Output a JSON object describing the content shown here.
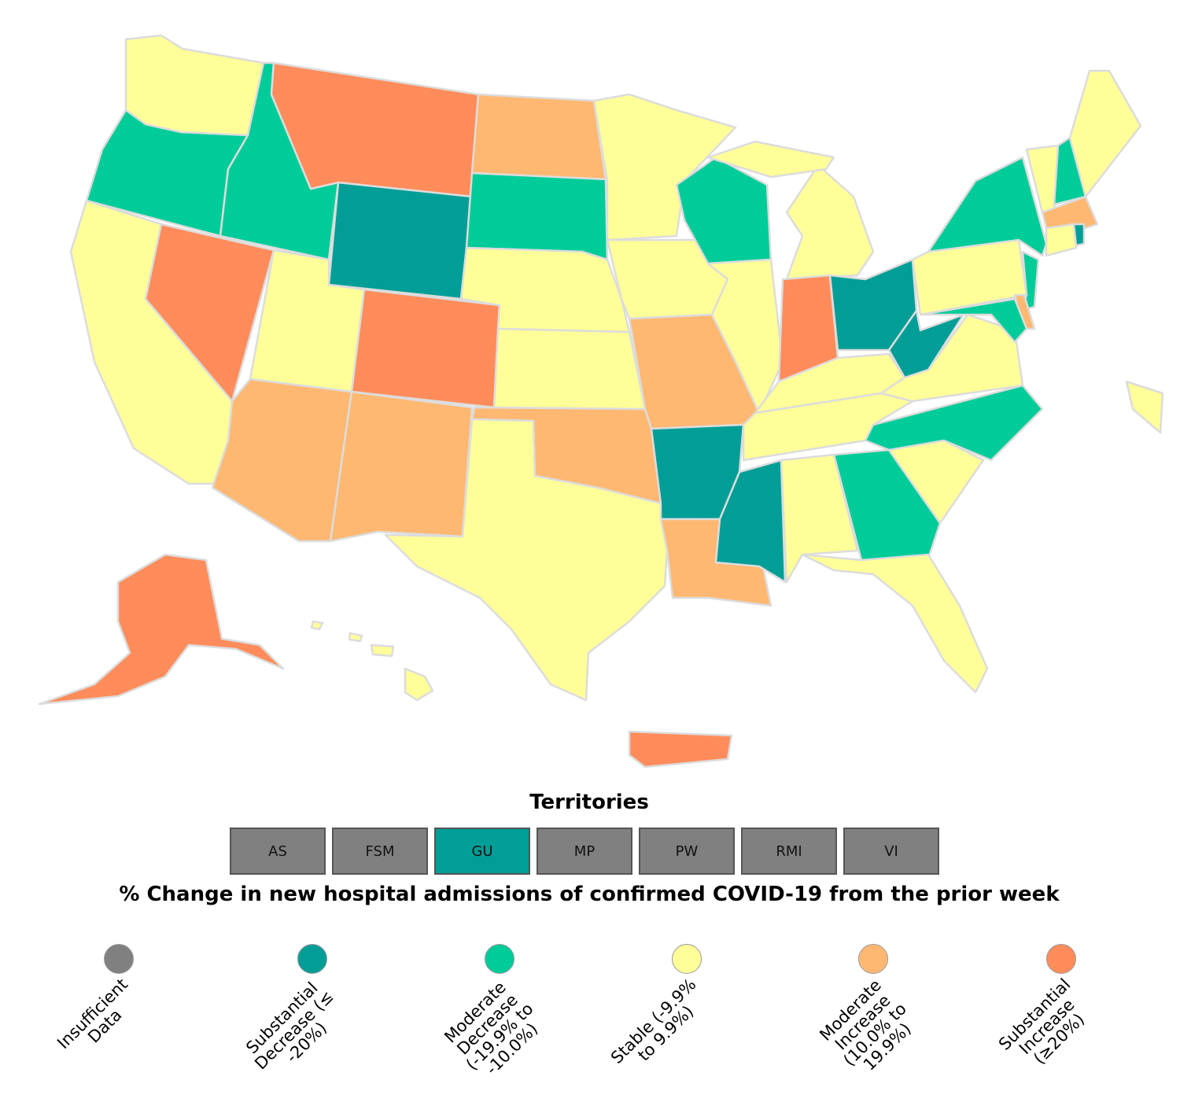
{
  "colors": {
    "insufficient": "#808080",
    "substantial_decrease": "#009e96",
    "moderate_decrease": "#00cc99",
    "stable": "#ffff99",
    "moderate_increase": "#ffb872",
    "substantial_increase": "#ff8c5a"
  },
  "states": {
    "WA": "stable",
    "OR": "moderate_decrease",
    "CA": "stable",
    "ID": "moderate_decrease",
    "NV": "substantial_increase",
    "MT": "substantial_increase",
    "WY": "substantial_decrease",
    "UT": "stable",
    "AZ": "moderate_increase",
    "CO": "substantial_increase",
    "NM": "moderate_increase",
    "ND": "moderate_increase",
    "SD": "moderate_decrease",
    "NE": "stable",
    "KS": "stable",
    "OK": "moderate_increase",
    "TX": "stable",
    "MN": "stable",
    "IA": "stable",
    "MO": "moderate_increase",
    "AR": "substantial_decrease",
    "LA": "moderate_increase",
    "WI": "moderate_decrease",
    "IL": "stable",
    "MI": "stable",
    "IN": "substantial_increase",
    "OH": "substantial_decrease",
    "KY": "stable",
    "TN": "stable",
    "MS": "substantial_decrease",
    "AL": "stable",
    "GA": "moderate_decrease",
    "FL": "stable",
    "SC": "stable",
    "NC": "moderate_decrease",
    "VA": "stable",
    "WV": "substantial_decrease",
    "PA": "stable",
    "NY": "moderate_decrease",
    "NJ": "moderate_decrease",
    "DE": "moderate_increase",
    "MD": "moderate_decrease",
    "VT": "stable",
    "NH": "moderate_decrease",
    "ME": "stable",
    "MA": "moderate_increase",
    "CT": "stable",
    "RI": "substantial_decrease",
    "AK": "substantial_increase",
    "HI": "stable",
    "PR": "substantial_increase",
    "DC": "stable"
  },
  "territories": {
    "title": "Territories",
    "items": [
      {
        "label": "AS",
        "category": "insufficient"
      },
      {
        "label": "FSM",
        "category": "insufficient"
      },
      {
        "label": "GU",
        "category": "substantial_decrease"
      },
      {
        "label": "MP",
        "category": "insufficient"
      },
      {
        "label": "PW",
        "category": "insufficient"
      },
      {
        "label": "RMI",
        "category": "insufficient"
      },
      {
        "label": "VI",
        "category": "insufficient"
      }
    ]
  },
  "legend": {
    "title": "% Change in new hospital admissions of confirmed COVID-19 from the prior week",
    "items": [
      {
        "category": "insufficient",
        "label": "Insufficient\nData"
      },
      {
        "category": "substantial_decrease",
        "label": "Substantial\nDecrease (≤\n-20%)"
      },
      {
        "category": "moderate_decrease",
        "label": "Moderate\nDecrease\n(-19.9% to\n-10.0%)"
      },
      {
        "category": "stable",
        "label": "Stable (-9.9%\nto 9.9%)"
      },
      {
        "category": "moderate_increase",
        "label": "Moderate\nIncrease\n(10.0% to\n19.9%)"
      },
      {
        "category": "substantial_increase",
        "label": "Substantial\nIncrease\n(≥20%)"
      }
    ]
  }
}
